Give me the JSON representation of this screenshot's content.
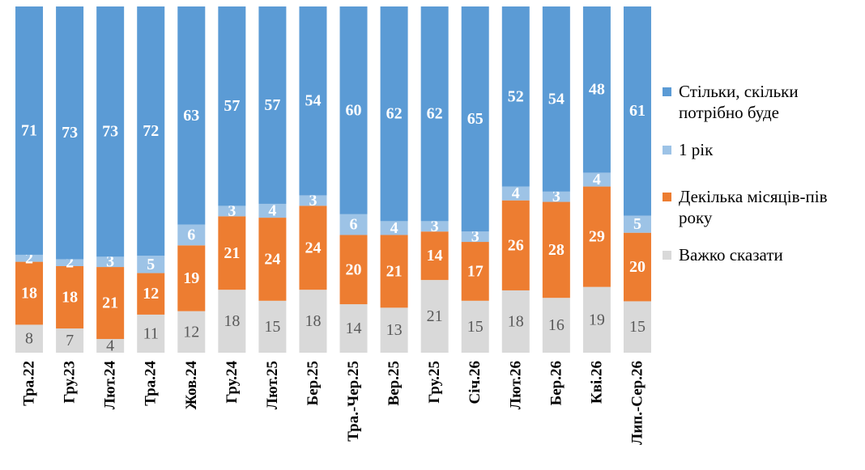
{
  "chart_data": {
    "type": "bar",
    "stacked": true,
    "categories": [
      "Тра.22",
      "Гру.23",
      "Лют.24",
      "Тра.24",
      "Жов.24",
      "Гру.24",
      "Лют.25",
      "Бер.25",
      "Тра.-Чер.25",
      "Вер.25",
      "Гру.25",
      "Січ.26",
      "Лют.26",
      "Бер.26",
      "Кві.26",
      "Лип.-Сер.26"
    ],
    "series": [
      {
        "name": "Важко сказати",
        "color": "#d9d9d9",
        "values": [
          8,
          7,
          4,
          11,
          12,
          18,
          15,
          18,
          14,
          13,
          21,
          15,
          18,
          16,
          19,
          15
        ]
      },
      {
        "name": "Декілька місяців-пів року",
        "color": "#ed7d31",
        "values": [
          18,
          18,
          21,
          12,
          19,
          21,
          24,
          24,
          20,
          21,
          14,
          17,
          26,
          28,
          29,
          20
        ]
      },
      {
        "name": "1 рік",
        "color": "#9dc3e6",
        "values": [
          2,
          2,
          3,
          5,
          6,
          3,
          4,
          3,
          6,
          4,
          3,
          3,
          4,
          3,
          4,
          5
        ]
      },
      {
        "name": "Стільки, скільки потрібно буде",
        "color": "#5b9bd5",
        "values": [
          71,
          73,
          73,
          72,
          63,
          57,
          57,
          54,
          60,
          62,
          62,
          65,
          52,
          54,
          48,
          61
        ]
      }
    ],
    "ylim": [
      0,
      100
    ],
    "grid": false,
    "legend_position": "right"
  },
  "legend": {
    "items": [
      {
        "name": "Стільки, скільки потрібно буде",
        "lines": [
          "Стільки, скільки",
          "потрібно буде"
        ],
        "color": "#5b9bd5"
      },
      {
        "name": "1 рік",
        "lines": [
          "1 рік"
        ],
        "color": "#9dc3e6"
      },
      {
        "name": "Декілька місяців-пів року",
        "lines": [
          "Декілька місяців-пів",
          "року"
        ],
        "color": "#ed7d31"
      },
      {
        "name": "Важко сказати",
        "lines": [
          "Важко сказати"
        ],
        "color": "#d9d9d9"
      }
    ]
  }
}
